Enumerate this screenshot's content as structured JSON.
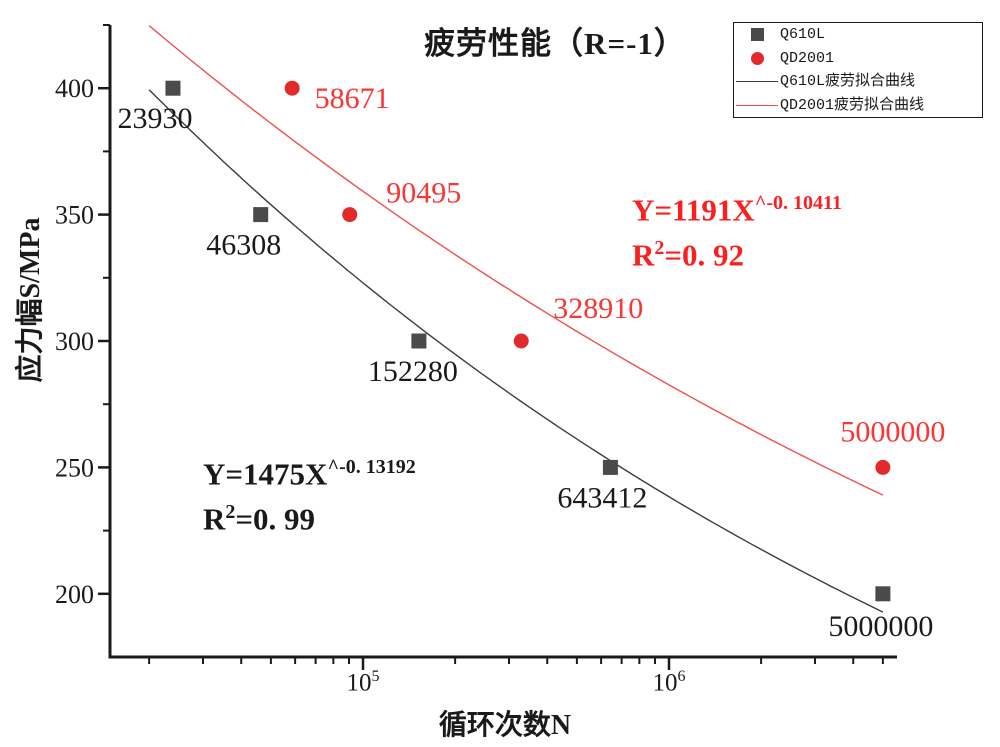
{
  "chart_data": {
    "type": "scatter",
    "title": "疲劳性能（R=-1）",
    "xlabel": "循环次数N",
    "ylabel": "应力幅S/MPa",
    "x_scale": "log",
    "xlim": [
      14900,
      5560000
    ],
    "ylim": [
      175,
      425
    ],
    "y_ticks_major": [
      200,
      250,
      300,
      350,
      400
    ],
    "y_ticks_minor": [
      225,
      275,
      325,
      375,
      425
    ],
    "x_ticks_major": [
      100000,
      1000000
    ],
    "x_tick_labels": [
      {
        "base": "10",
        "sup": "5"
      },
      {
        "base": "10",
        "sup": "6"
      }
    ],
    "x_ticks_minor": [
      20000,
      30000,
      40000,
      50000,
      60000,
      70000,
      80000,
      90000,
      200000,
      300000,
      400000,
      500000,
      600000,
      700000,
      800000,
      900000,
      2000000,
      3000000,
      4000000,
      5000000
    ],
    "grid": false,
    "axis_color": "#1a1a1a",
    "legend": {
      "position": "top-right",
      "items": [
        {
          "label": "Q610L",
          "swatch": "square",
          "color": "#4a4a4a"
        },
        {
          "label": "QD2001",
          "swatch": "circle",
          "color": "#e12b2b"
        },
        {
          "label": "Q610L疲劳拟合曲线",
          "swatch": "line",
          "color": "#3d3d3d"
        },
        {
          "label": "QD2001疲劳拟合曲线",
          "swatch": "line",
          "color": "#f04f4f"
        }
      ]
    },
    "series": [
      {
        "name": "Q610L",
        "marker": "square",
        "color": "#4a4a4a",
        "label_color": "#1a1a1a",
        "points": [
          {
            "x": 23930,
            "y": 400,
            "label": "23930",
            "dx": -18,
            "dy": 30
          },
          {
            "x": 46308,
            "y": 350,
            "label": "46308",
            "dx": -17,
            "dy": 30
          },
          {
            "x": 152280,
            "y": 300,
            "label": "152280",
            "dx": -6,
            "dy": 30
          },
          {
            "x": 643412,
            "y": 250,
            "label": "643412",
            "dx": -8,
            "dy": 30
          },
          {
            "x": 5000000,
            "y": 200,
            "label": "5000000",
            "dx": -2,
            "dy": 32
          }
        ]
      },
      {
        "name": "QD2001",
        "marker": "circle",
        "color": "#e12b2b",
        "label_color": "#fb3434",
        "points": [
          {
            "x": 58671,
            "y": 400,
            "label": "58671",
            "dx": 60,
            "dy": 10
          },
          {
            "x": 90495,
            "y": 350,
            "label": "90495",
            "dx": 74,
            "dy": -22
          },
          {
            "x": 328910,
            "y": 300,
            "label": "328910",
            "dx": 77,
            "dy": -33
          },
          {
            "x": 5000000,
            "y": 250,
            "label": "5000000",
            "dx": 10,
            "dy": -36
          }
        ]
      }
    ],
    "fit_curves": [
      {
        "name": "Q610L疲劳拟合曲线",
        "color": "#3d3d3d",
        "coef_a": 1475,
        "exp_b": -0.13192,
        "x_range": [
          20000,
          5000000
        ]
      },
      {
        "name": "QD2001疲劳拟合曲线",
        "color": "#f04f4f",
        "coef_a": 1191,
        "exp_b": -0.10411,
        "x_range": [
          20000,
          5000000
        ]
      }
    ],
    "annotations": [
      {
        "id": "qd2001-fit-equation",
        "color": "#fd1f1f",
        "line1_base": "Y=1191X",
        "line1_sup": "^-0. 10411",
        "line2_base": "R",
        "line2_sup": "2",
        "line2_rest": "=0. 92"
      },
      {
        "id": "q610l-fit-equation",
        "color": "#1a1a1a",
        "line1_base": "Y=1475X",
        "line1_sup": "^-0. 13192",
        "line2_base": "R",
        "line2_sup": "2",
        "line2_rest": "=0. 99"
      }
    ]
  }
}
